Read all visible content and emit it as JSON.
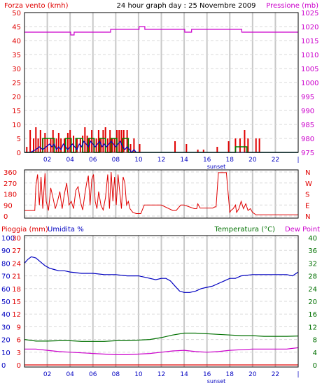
{
  "header": {
    "left_title": "Forza vento (kmh)",
    "center_title": "24 hour graph day : 25 Novembre 2009",
    "right_title": "Pressione (mb)"
  },
  "colors": {
    "wind": "#e00000",
    "gust": "#0000c0",
    "wind_avg": "#008000",
    "pressure": "#cc00cc",
    "direction": "#e00000",
    "rain": "#e00000",
    "humidity": "#0000c0",
    "temperature": "#007000",
    "dewpoint": "#cc00cc",
    "grid_vertical": "#c8c8c8",
    "grid_horizontal": "#d8d8d8"
  },
  "time_axis": {
    "ticks": [
      "02",
      "04",
      "06",
      "08",
      "10",
      "12",
      "14",
      "16",
      "18",
      "20",
      "22",
      "|"
    ],
    "sunset_label": "sunset"
  },
  "chart_data": [
    {
      "type": "line",
      "title": "",
      "left_axis_label": "Forza vento (kmh)",
      "right_axis_label": "Pressione (mb)",
      "left_ticks": [
        "0",
        "5",
        "10",
        "15",
        "20",
        "25",
        "30",
        "35",
        "40",
        "45",
        "50"
      ],
      "right_ticks": [
        "975",
        "980",
        "985",
        "990",
        "995",
        "1000",
        "1005",
        "1010",
        "1015",
        "1020",
        "1025"
      ],
      "ylim_left": [
        0,
        50
      ],
      "ylim_right": [
        975,
        1025
      ],
      "xlim": [
        0,
        24
      ],
      "grid": true,
      "wind_bars": {
        "name": "Forza vento",
        "x": [
          0.2,
          0.5,
          0.8,
          1.0,
          1.2,
          1.4,
          1.6,
          1.8,
          2.0,
          2.3,
          2.5,
          2.8,
          3.0,
          3.2,
          3.5,
          3.8,
          4.0,
          4.3,
          4.6,
          4.9,
          5.1,
          5.3,
          5.5,
          5.7,
          5.9,
          6.1,
          6.3,
          6.5,
          6.7,
          6.9,
          7.1,
          7.3,
          7.5,
          7.7,
          7.9,
          8.1,
          8.3,
          8.5,
          8.7,
          9.0,
          9.3,
          9.6,
          10.1,
          13.2,
          14.2,
          15.2,
          15.7,
          16.9,
          17.9,
          18.5,
          18.9,
          19.3,
          19.6,
          20.3,
          20.6
        ],
        "values": [
          2,
          8,
          5,
          9,
          5,
          8,
          5,
          7,
          5,
          5,
          8,
          5,
          7,
          5,
          5,
          7,
          8,
          6,
          5,
          5,
          6,
          9,
          6,
          5,
          8,
          5,
          5,
          8,
          5,
          8,
          9,
          5,
          8,
          5,
          5,
          8,
          8,
          8,
          8,
          8,
          3,
          5,
          3,
          4,
          3,
          1,
          1,
          2,
          4,
          5,
          5,
          8,
          5,
          5,
          5
        ]
      },
      "series": [
        {
          "name": "Raffica",
          "x": [
            0.0,
            0.5,
            1.0,
            1.3,
            1.6,
            1.9,
            2.2,
            2.4,
            2.6,
            2.8,
            3.0,
            3.2,
            3.4,
            3.6,
            3.8,
            4.0,
            4.2,
            4.4,
            4.6,
            4.8,
            5.0,
            5.2,
            5.4,
            5.6,
            5.8,
            6.0,
            6.2,
            6.4,
            6.6,
            6.8,
            7.0,
            7.2,
            7.4,
            7.6,
            7.8,
            8.0,
            8.2,
            8.4,
            8.6,
            8.8,
            9.0,
            9.2,
            9.4,
            9.6,
            9.8,
            10.0,
            10.5,
            24.0
          ],
          "values": [
            0,
            0,
            1,
            2,
            1,
            2,
            3,
            2,
            3,
            1,
            2,
            1,
            3,
            2,
            1,
            2,
            3,
            2,
            1,
            3,
            2,
            4,
            3,
            2,
            4,
            3,
            2,
            3,
            4,
            2,
            3,
            2,
            3,
            4,
            3,
            2,
            3,
            4,
            2,
            1,
            2,
            1,
            0,
            1,
            0,
            0,
            0,
            0
          ]
        },
        {
          "name": "Vento medio",
          "x": [
            0.0,
            1.0,
            1.5,
            1.6,
            2.5,
            2.6,
            3.5,
            3.6,
            4.0,
            4.1,
            4.4,
            4.5,
            5.0,
            5.1,
            5.5,
            5.6,
            6.0,
            6.1,
            6.5,
            6.6,
            7.0,
            7.1,
            7.5,
            7.6,
            8.0,
            8.1,
            8.5,
            8.6,
            9.0,
            9.1,
            10.5,
            18.4,
            18.5,
            19.4,
            19.5,
            24.0
          ],
          "values": [
            0,
            0,
            0,
            5,
            5,
            0,
            0,
            5,
            5,
            0,
            0,
            5,
            5,
            0,
            0,
            5,
            5,
            0,
            0,
            5,
            5,
            0,
            0,
            5,
            5,
            0,
            0,
            5,
            5,
            0,
            0,
            0,
            2,
            2,
            0,
            0
          ]
        },
        {
          "name": "Pressione",
          "axis": "right",
          "x": [
            0.0,
            4.0,
            4.05,
            4.3,
            4.35,
            7.5,
            7.55,
            10.0,
            10.05,
            10.5,
            10.55,
            14.0,
            14.05,
            14.6,
            14.65,
            19.0,
            19.05,
            24.0
          ],
          "values": [
            1018,
            1018,
            1017,
            1017,
            1018,
            1018,
            1019,
            1019,
            1020,
            1020,
            1019,
            1019,
            1018,
            1018,
            1019,
            1019,
            1018,
            1018
          ]
        }
      ]
    },
    {
      "type": "line",
      "title": "",
      "left_ticks": [
        "0",
        "90",
        "180",
        "270",
        "360"
      ],
      "right_ticks": [
        "N",
        "E",
        "S",
        "W",
        "N"
      ],
      "ylim": [
        0,
        360
      ],
      "xlim": [
        0,
        24
      ],
      "series": [
        {
          "name": "Direzione vento",
          "x": [
            0.0,
            0.9,
            1.0,
            1.15,
            1.3,
            1.45,
            1.6,
            1.8,
            1.9,
            2.1,
            2.3,
            2.5,
            2.7,
            2.9,
            3.1,
            3.3,
            3.5,
            3.7,
            3.9,
            4.1,
            4.3,
            4.5,
            4.7,
            4.9,
            5.1,
            5.3,
            5.45,
            5.6,
            5.75,
            5.9,
            6.05,
            6.2,
            6.35,
            6.5,
            6.7,
            6.9,
            7.1,
            7.3,
            7.45,
            7.6,
            7.75,
            7.9,
            8.05,
            8.2,
            8.35,
            8.5,
            8.65,
            8.8,
            8.95,
            9.1,
            9.25,
            9.5,
            9.8,
            10.0,
            10.2,
            10.5,
            12.0,
            13.0,
            13.3,
            13.7,
            14.0,
            14.9,
            15.1,
            15.2,
            15.4,
            16.5,
            16.7,
            16.8,
            17.0,
            17.1,
            17.7,
            18.0,
            18.1,
            18.3,
            18.5,
            18.6,
            18.8,
            19.0,
            19.2,
            19.4,
            19.6,
            19.8,
            20.0,
            20.3,
            24.0
          ],
          "values": [
            45,
            45,
            250,
            340,
            90,
            320,
            60,
            350,
            120,
            45,
            230,
            150,
            60,
            120,
            200,
            60,
            180,
            270,
            90,
            120,
            60,
            210,
            240,
            120,
            50,
            180,
            270,
            330,
            90,
            300,
            340,
            120,
            60,
            200,
            90,
            50,
            150,
            340,
            60,
            360,
            120,
            320,
            90,
            340,
            200,
            60,
            320,
            270,
            90,
            120,
            60,
            30,
            20,
            20,
            20,
            90,
            90,
            45,
            45,
            90,
            90,
            60,
            60,
            100,
            65,
            65,
            75,
            75,
            355,
            355,
            355,
            30,
            45,
            60,
            90,
            30,
            60,
            120,
            60,
            100,
            45,
            60,
            30,
            10,
            10
          ]
        }
      ]
    },
    {
      "type": "line",
      "title": "",
      "left_axis_label": "Pioggia (mm)",
      "left_axis_label2": "Umidita %",
      "right_axis_label": "Temperatura (°C)",
      "right_axis_label2": "Dew Point",
      "humidity_ticks": [
        "0",
        "10",
        "20",
        "30",
        "40",
        "50",
        "60",
        "70",
        "80",
        "90",
        "100"
      ],
      "rain_ticks": [
        "0",
        "3",
        "6",
        "9",
        "12",
        "15",
        "18",
        "21",
        "24",
        "27",
        "30"
      ],
      "temp_ticks": [
        "0",
        "4",
        "8",
        "12",
        "16",
        "20",
        "24",
        "28",
        "32",
        "36",
        "40"
      ],
      "ylim_humidity": [
        0,
        100
      ],
      "ylim_rain": [
        0,
        30
      ],
      "ylim_temp": [
        0,
        40
      ],
      "xlim": [
        0,
        24
      ],
      "series": [
        {
          "name": "Umidita %",
          "axis": "humidity",
          "x": [
            0.0,
            0.3,
            0.6,
            1.0,
            1.4,
            1.8,
            2.2,
            2.6,
            3.0,
            3.5,
            4.0,
            5.0,
            6.0,
            7.0,
            8.0,
            9.0,
            10.0,
            11.0,
            11.5,
            12.0,
            12.4,
            12.8,
            13.2,
            13.6,
            14.0,
            14.5,
            15.0,
            15.5,
            16.0,
            16.5,
            17.0,
            17.5,
            18.0,
            18.5,
            19.0,
            20.0,
            21.0,
            22.0,
            23.0,
            23.5,
            24.0
          ],
          "values": [
            80,
            83,
            85,
            84,
            81,
            78,
            76,
            75,
            74,
            74,
            73,
            72,
            72,
            71,
            71,
            70,
            70,
            68,
            67,
            68,
            68,
            66,
            62,
            58,
            57,
            57,
            58,
            60,
            61,
            62,
            64,
            66,
            68,
            68,
            70,
            71,
            71,
            71,
            71,
            70,
            73
          ]
        },
        {
          "name": "Temperatura (°C)",
          "axis": "temp",
          "x": [
            0.0,
            1.0,
            2.0,
            3.0,
            4.0,
            5.0,
            6.0,
            7.0,
            8.0,
            9.0,
            10.0,
            11.0,
            12.0,
            13.0,
            14.0,
            15.0,
            16.0,
            17.0,
            18.0,
            19.0,
            20.0,
            21.0,
            22.0,
            23.0,
            24.0
          ],
          "values": [
            8.0,
            7.5,
            7.5,
            7.6,
            7.6,
            7.4,
            7.4,
            7.4,
            7.6,
            7.6,
            7.8,
            8.0,
            8.6,
            9.4,
            10.0,
            10.0,
            9.8,
            9.6,
            9.4,
            9.2,
            9.2,
            9.0,
            9.0,
            9.0,
            9.1
          ]
        },
        {
          "name": "Dew Point",
          "axis": "temp",
          "x": [
            0.0,
            1.0,
            2.0,
            3.0,
            4.0,
            5.0,
            6.0,
            7.0,
            8.0,
            9.0,
            10.0,
            11.0,
            12.0,
            13.0,
            14.0,
            15.0,
            16.0,
            17.0,
            18.0,
            19.0,
            20.0,
            21.0,
            22.0,
            23.0,
            24.0
          ],
          "values": [
            5.0,
            5.0,
            4.6,
            4.2,
            4.0,
            3.8,
            3.6,
            3.4,
            3.2,
            3.2,
            3.4,
            3.6,
            4.0,
            4.4,
            4.6,
            4.2,
            4.0,
            4.2,
            4.6,
            4.8,
            5.0,
            5.0,
            5.0,
            5.0,
            5.4
          ]
        },
        {
          "name": "Pioggia (mm)",
          "axis": "rain",
          "x": [
            0.0,
            24.0
          ],
          "values": [
            0,
            0
          ]
        }
      ]
    }
  ]
}
